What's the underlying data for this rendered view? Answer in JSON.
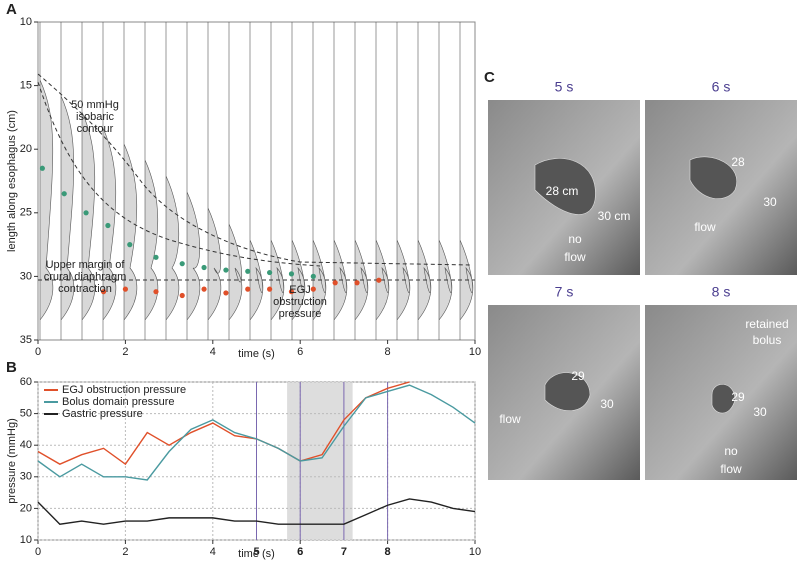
{
  "panel_labels": [
    "A",
    "B",
    "C"
  ],
  "chart_data": [
    {
      "type": "scatter",
      "xlabel": "time (s)",
      "ylabel": "length along esophagus (cm)",
      "xlim": [
        0,
        10
      ],
      "xticks": [
        0,
        2,
        4,
        6,
        8,
        10
      ],
      "ylim": [
        10,
        35
      ],
      "yticks": [
        10,
        15,
        20,
        25,
        30,
        35
      ],
      "y_inverted": true,
      "series": [
        {
          "color": "#3a9a78",
          "x": [
            0.1,
            0.6,
            1.1,
            1.6,
            2.1,
            2.7,
            3.3,
            3.8,
            4.3,
            4.8,
            5.3,
            5.8,
            6.3
          ],
          "values": [
            21.5,
            23.5,
            25,
            26,
            27.5,
            28.5,
            29,
            29.3,
            29.5,
            29.6,
            29.7,
            29.8,
            30
          ]
        },
        {
          "color": "#e0502a",
          "x": [
            1.5,
            2,
            2.7,
            3.3,
            3.8,
            4.3,
            4.8,
            5.3,
            5.8,
            6.3,
            6.8,
            7.3,
            7.8
          ],
          "values": [
            31.2,
            31,
            31.2,
            31.5,
            31,
            31.3,
            31,
            31,
            31.2,
            31,
            30.5,
            30.5,
            30.3
          ]
        }
      ],
      "annotations": [
        [
          "50 mmHg",
          "isobaric",
          "contour"
        ],
        [
          "Upper margin of",
          "crural diaphragm",
          "contraction"
        ],
        [
          "EGJ",
          "obstruction",
          "pressure"
        ]
      ]
    },
    {
      "type": "line",
      "xlabel": "time (s)",
      "ylabel": "pressure (mmHg)",
      "xlim": [
        0,
        10
      ],
      "xticks": [
        0,
        2,
        4,
        6,
        8,
        10
      ],
      "ylim": [
        10,
        60
      ],
      "yticks": [
        10,
        20,
        30,
        40,
        50,
        60
      ],
      "grid": true,
      "markers": [
        5,
        6,
        7,
        8
      ],
      "shade": [
        5.7,
        7.2
      ],
      "x": [
        0,
        0.5,
        1,
        1.5,
        2,
        2.5,
        3,
        3.5,
        4,
        4.5,
        5,
        5.5,
        6,
        6.5,
        7,
        7.5,
        8,
        8.5,
        9,
        9.5,
        10
      ],
      "series": [
        {
          "name": "EGJ obstruction pressure",
          "color": "#e0502a",
          "values": [
            38,
            34,
            37,
            39,
            34,
            44,
            40,
            44,
            47,
            43,
            42,
            39,
            35,
            37,
            48,
            55,
            58,
            60,
            null,
            null,
            null
          ]
        },
        {
          "name": "Bolus domain pressure",
          "color": "#4a9aa0",
          "values": [
            35,
            30,
            34,
            30,
            30,
            29,
            38,
            45,
            48,
            44,
            42,
            39,
            35,
            36,
            46,
            55,
            57,
            59,
            56,
            52,
            47
          ]
        },
        {
          "name": "Gastric pressure",
          "color": "#222222",
          "values": [
            22,
            15,
            16,
            15,
            16,
            16,
            17,
            17,
            17,
            16,
            16,
            15,
            15,
            15,
            15,
            18,
            21,
            23,
            22,
            20,
            19
          ]
        }
      ]
    }
  ],
  "images": [
    {
      "title": "5 s",
      "labels": [
        "28 cm",
        "30 cm",
        "no",
        "flow"
      ]
    },
    {
      "title": "6 s",
      "labels": [
        "28",
        "30",
        "flow"
      ]
    },
    {
      "title": "7 s",
      "labels": [
        "29",
        "30",
        "flow"
      ]
    },
    {
      "title": "8 s",
      "labels": [
        "retained",
        "bolus",
        "29",
        "30",
        "no",
        "flow"
      ]
    }
  ]
}
